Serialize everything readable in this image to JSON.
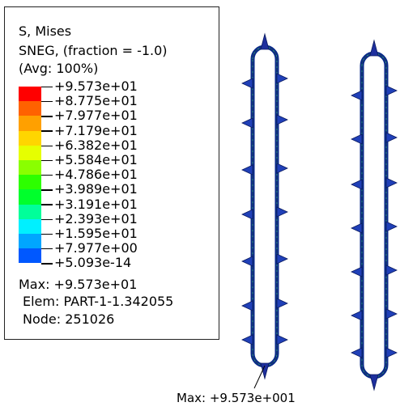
{
  "legend": {
    "title_lines": [
      "S, Mises",
      "SNEG, (fraction = -1.0)",
      "(Avg: 100%)"
    ],
    "ticks": [
      "+9.573e+01",
      "+8.775e+01",
      "+7.977e+01",
      "+7.179e+01",
      "+6.382e+01",
      "+5.584e+01",
      "+4.786e+01",
      "+3.989e+01",
      "+3.191e+01",
      "+2.393e+01",
      "+1.595e+01",
      "+7.977e+00",
      "+5.093e-14"
    ],
    "colors": [
      "#ff0000",
      "#ff6200",
      "#ffa000",
      "#ffd500",
      "#e6ff00",
      "#8aff00",
      "#2dff00",
      "#00ff2c",
      "#00ff9a",
      "#00f0ff",
      "#00a6ff",
      "#0058ff",
      "#0000ff"
    ],
    "max_line": "Max: +9.573e+01",
    "elem_line": "Elem: PART-1-1.342055",
    "node_line": "Node: 251026"
  },
  "annotation": {
    "max_label": "Max: +9.573e+001"
  }
}
